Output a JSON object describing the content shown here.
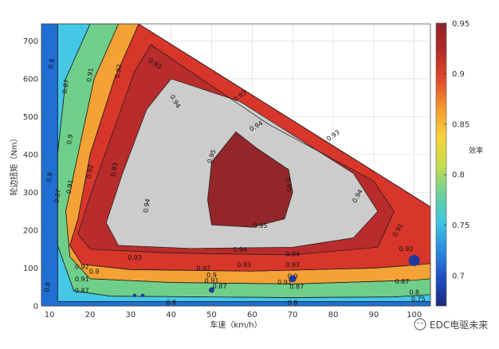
{
  "chart_data": {
    "type": "contour",
    "xlabel": "车速（km/h）",
    "ylabel": "轮边扭矩（Nm）",
    "xlim": [
      8,
      104
    ],
    "ylim": [
      0,
      745
    ],
    "xticks": [
      10,
      20,
      30,
      40,
      50,
      60,
      70,
      80,
      90,
      100
    ],
    "yticks": [
      0,
      100,
      200,
      300,
      400,
      500,
      600,
      700
    ],
    "grid": true,
    "envelope": [
      [
        8,
        745
      ],
      [
        32,
        745
      ],
      [
        104,
        262
      ],
      [
        104,
        0
      ],
      [
        8,
        0
      ]
    ],
    "levels": [
      {
        "value": 0.7,
        "color": "#1a2e8c"
      },
      {
        "value": 0.75,
        "color": "#1f6fd4"
      },
      {
        "value": 0.8,
        "color": "#45c8e6"
      },
      {
        "value": 0.85,
        "color": "#6fcf8a"
      },
      {
        "value": 0.87,
        "color": "#f4a236"
      },
      {
        "value": 0.9,
        "color": "#d8362b"
      },
      {
        "value": 0.93,
        "color": "#b82c2c"
      },
      {
        "value": 0.95,
        "color": "#93262a"
      }
    ],
    "regions": [
      {
        "level": 0.75,
        "polygon": [
          [
            8,
            745
          ],
          [
            12,
            745
          ],
          [
            12,
            12
          ],
          [
            104,
            12
          ],
          [
            104,
            0
          ],
          [
            8,
            0
          ]
        ]
      },
      {
        "level": 0.8,
        "polygon": [
          [
            12,
            745
          ],
          [
            20,
            745
          ],
          [
            14,
            600
          ],
          [
            12,
            400
          ],
          [
            12,
            160
          ],
          [
            16,
            40
          ],
          [
            25,
            26
          ],
          [
            70,
            22
          ],
          [
            95,
            24
          ],
          [
            104,
            30
          ],
          [
            104,
            12
          ],
          [
            12,
            12
          ]
        ]
      },
      {
        "level": 0.85,
        "polygon": [
          [
            20,
            745
          ],
          [
            27,
            745
          ],
          [
            21,
            600
          ],
          [
            17,
            400
          ],
          [
            14,
            250
          ],
          [
            15,
            130
          ],
          [
            20,
            72
          ],
          [
            40,
            62
          ],
          [
            70,
            58
          ],
          [
            100,
            68
          ],
          [
            104,
            72
          ],
          [
            104,
            30
          ],
          [
            95,
            24
          ],
          [
            70,
            22
          ],
          [
            25,
            26
          ],
          [
            16,
            40
          ],
          [
            12,
            160
          ],
          [
            12,
            400
          ],
          [
            14,
            600
          ]
        ]
      },
      {
        "level": 0.87,
        "polygon": [
          [
            27,
            745
          ],
          [
            32,
            745
          ],
          [
            26,
            600
          ],
          [
            20,
            400
          ],
          [
            17,
            230
          ],
          [
            15,
            160
          ],
          [
            18,
            110
          ],
          [
            30,
            96
          ],
          [
            60,
            92
          ],
          [
            90,
            100
          ],
          [
            100,
            108
          ],
          [
            104,
            112
          ],
          [
            104,
            72
          ],
          [
            100,
            68
          ],
          [
            70,
            58
          ],
          [
            40,
            62
          ],
          [
            20,
            72
          ],
          [
            15,
            130
          ],
          [
            14,
            250
          ],
          [
            17,
            400
          ],
          [
            21,
            600
          ]
        ]
      },
      {
        "level": 0.9,
        "polygon": [
          [
            32,
            745
          ],
          [
            104,
            262
          ],
          [
            104,
            112
          ],
          [
            100,
            108
          ],
          [
            90,
            100
          ],
          [
            60,
            92
          ],
          [
            30,
            96
          ],
          [
            18,
            110
          ],
          [
            15,
            160
          ],
          [
            17,
            230
          ],
          [
            20,
            400
          ],
          [
            26,
            600
          ]
        ]
      },
      {
        "level": 0.93,
        "polygon": [
          [
            35,
            690
          ],
          [
            64,
            480
          ],
          [
            90,
            330
          ],
          [
            95,
            250
          ],
          [
            91,
            155
          ],
          [
            70,
            135
          ],
          [
            40,
            140
          ],
          [
            20,
            150
          ],
          [
            17,
            190
          ],
          [
            20,
            290
          ],
          [
            25,
            440
          ],
          [
            31,
            620
          ]
        ]
      },
      {
        "level": 0.94,
        "polygon": [
          [
            40,
            600
          ],
          [
            57,
            540
          ],
          [
            85,
            350
          ],
          [
            91,
            250
          ],
          [
            85,
            180
          ],
          [
            70,
            155
          ],
          [
            45,
            152
          ],
          [
            27,
            160
          ],
          [
            24,
            220
          ],
          [
            28,
            350
          ],
          [
            34,
            520
          ]
        ]
      },
      {
        "level": 0.95,
        "polygon": [
          [
            56,
            460
          ],
          [
            61,
            418
          ],
          [
            69,
            360
          ],
          [
            70,
            300
          ],
          [
            68,
            230
          ],
          [
            60,
            208
          ],
          [
            50,
            214
          ],
          [
            49,
            280
          ],
          [
            50,
            380
          ]
        ]
      }
    ],
    "contour_labels": [
      {
        "text": "0.8",
        "x": 10.5,
        "y": 640,
        "rotate": -80
      },
      {
        "text": "0.8",
        "x": 10.0,
        "y": 340,
        "rotate": -80
      },
      {
        "text": "0.8",
        "x": 9.5,
        "y": 50,
        "rotate": -80
      },
      {
        "text": "0.8",
        "x": 40,
        "y": 8,
        "rotate": 0
      },
      {
        "text": "0.8",
        "x": 70,
        "y": 8,
        "rotate": 0
      },
      {
        "text": "0.8",
        "x": 100,
        "y": 36,
        "rotate": 0
      },
      {
        "text": "0.75",
        "x": 101,
        "y": 18,
        "rotate": 0
      },
      {
        "text": "0.87",
        "x": 14,
        "y": 580,
        "rotate": -80
      },
      {
        "text": "0.87",
        "x": 12,
        "y": 290,
        "rotate": -80
      },
      {
        "text": "0.87",
        "x": 18,
        "y": 40,
        "rotate": 0
      },
      {
        "text": "0.87",
        "x": 52,
        "y": 52,
        "rotate": 0
      },
      {
        "text": "0.87",
        "x": 71,
        "y": 50,
        "rotate": 0
      },
      {
        "text": "0.87",
        "x": 97,
        "y": 64,
        "rotate": 0
      },
      {
        "text": "0.9",
        "x": 15,
        "y": 440,
        "rotate": -80
      },
      {
        "text": "0.9",
        "x": 21,
        "y": 90,
        "rotate": 0
      },
      {
        "text": "0.9",
        "x": 50,
        "y": 81,
        "rotate": 0
      },
      {
        "text": "0.9",
        "x": 70,
        "y": 78,
        "rotate": 0
      },
      {
        "text": "0.91",
        "x": 20,
        "y": 610,
        "rotate": -80
      },
      {
        "text": "0.91",
        "x": 15,
        "y": 315,
        "rotate": -80
      },
      {
        "text": "0.91",
        "x": 18,
        "y": 70,
        "rotate": 0
      },
      {
        "text": "0.91",
        "x": 50,
        "y": 66,
        "rotate": 0
      },
      {
        "text": "0.91",
        "x": 68,
        "y": 62,
        "rotate": 0
      },
      {
        "text": "0.92",
        "x": 27,
        "y": 620,
        "rotate": -80
      },
      {
        "text": "0.92",
        "x": 20,
        "y": 355,
        "rotate": -80
      },
      {
        "text": "0.92",
        "x": 18,
        "y": 103,
        "rotate": 0
      },
      {
        "text": "0.92",
        "x": 48,
        "y": 99,
        "rotate": 0
      },
      {
        "text": "0.92",
        "x": 98,
        "y": 150,
        "rotate": 0
      },
      {
        "text": "0.93",
        "x": 36,
        "y": 640,
        "rotate": 35
      },
      {
        "text": "0.93",
        "x": 57,
        "y": 555,
        "rotate": -35
      },
      {
        "text": "0.93",
        "x": 80,
        "y": 450,
        "rotate": -35
      },
      {
        "text": "0.93",
        "x": 26,
        "y": 360,
        "rotate": -80
      },
      {
        "text": "0.93",
        "x": 31,
        "y": 127,
        "rotate": 0
      },
      {
        "text": "0.93",
        "x": 58,
        "y": 108,
        "rotate": 0
      },
      {
        "text": "0.93",
        "x": 70,
        "y": 108,
        "rotate": 0
      },
      {
        "text": "0.91",
        "x": 96,
        "y": 200,
        "rotate": -60
      },
      {
        "text": "0.94",
        "x": 41,
        "y": 540,
        "rotate": 60
      },
      {
        "text": "0.94",
        "x": 61,
        "y": 475,
        "rotate": -30
      },
      {
        "text": "0.94",
        "x": 86,
        "y": 290,
        "rotate": -60
      },
      {
        "text": "0.94",
        "x": 34,
        "y": 265,
        "rotate": -80
      },
      {
        "text": "0.94",
        "x": 57,
        "y": 148,
        "rotate": 0
      },
      {
        "text": "0.94",
        "x": 70,
        "y": 137,
        "rotate": 0
      },
      {
        "text": "0.95",
        "x": 50,
        "y": 395,
        "rotate": -70
      },
      {
        "text": "0.95",
        "x": 69,
        "y": 320,
        "rotate": 80
      },
      {
        "text": "0.95",
        "x": 62,
        "y": 212,
        "rotate": 0
      }
    ],
    "points": [
      {
        "x": 31,
        "y": 28,
        "size": 2.2
      },
      {
        "x": 33,
        "y": 28,
        "size": 2.2
      },
      {
        "x": 50,
        "y": 42,
        "size": 3.5
      },
      {
        "x": 70,
        "y": 72,
        "size": 4.5
      },
      {
        "x": 100,
        "y": 120,
        "size": 7
      }
    ]
  },
  "colorbar": {
    "title": "效率",
    "min": 0.67,
    "max": 0.95,
    "ticks": [
      0.7,
      0.75,
      0.8,
      0.85,
      0.9,
      0.95
    ],
    "tick_labels": [
      "0.7",
      "0.75",
      "0.8",
      "0.85",
      "0.9",
      "0.95"
    ],
    "colors": [
      "#1a2a7a",
      "#1f4fc4",
      "#2b8de0",
      "#3fc7e0",
      "#6fd197",
      "#c8dd4a",
      "#f7d13a",
      "#f6962f",
      "#e04a2a",
      "#b62a2a",
      "#8e2426"
    ]
  },
  "watermark": {
    "text": "EDC电驱未来"
  }
}
